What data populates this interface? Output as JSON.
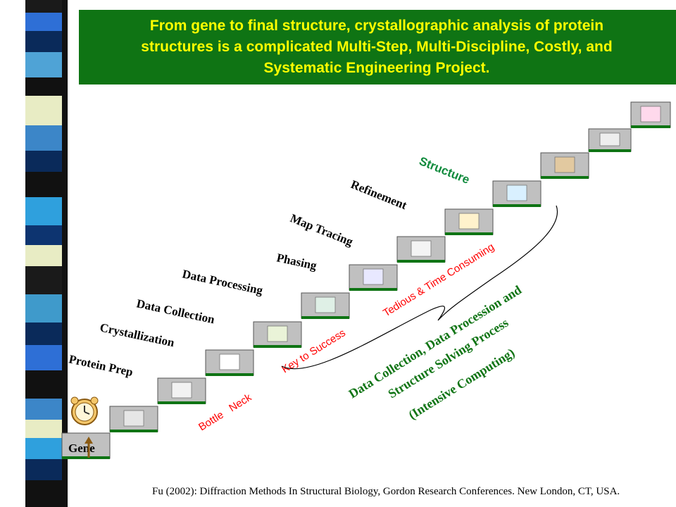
{
  "banner": {
    "line1": "From gene to final structure, crystallographic analysis of protein",
    "line2": "structures is a complicated Multi-Step, Multi-Discipline, Costly, and",
    "line3": "Systematic Engineering Project."
  },
  "steps": [
    {
      "name": "Gene",
      "label": "Gene"
    },
    {
      "name": "protein-prep",
      "label": "Protein Prep"
    },
    {
      "name": "crystallization",
      "label": "Crystallization"
    },
    {
      "name": "data-collection",
      "label": "Data Collection"
    },
    {
      "name": "data-processing",
      "label": "Data Processing"
    },
    {
      "name": "phasing",
      "label": "Phasing"
    },
    {
      "name": "map-tracing",
      "label": "Map Tracing"
    },
    {
      "name": "refinement",
      "label": "Refinement"
    },
    {
      "name": "structure",
      "label": "Structure"
    }
  ],
  "annotations": {
    "bottle_neck": "Bottle   Neck",
    "key_to_success": "Key to Success",
    "tedious": "Tedious & Time Consuming",
    "computing_line1": "Data Collection, Data Procession and",
    "computing_line2": "Structure Solving Process",
    "computing_line3": "(Intensive Computing)"
  },
  "citation": "Fu (2002): Diffraction Methods In Structural Biology, Gordon Research Conferences. New London, CT, USA.",
  "colors": {
    "banner_bg": "#0f7414",
    "banner_text": "#ffff00",
    "step_bar": "#0f7414",
    "step_fill": "#c0c0c0",
    "label_dark": "#000000",
    "label_structure": "#0f8a3c",
    "annotation_red": "#ff0000",
    "annotation_green": "#0f7414"
  }
}
